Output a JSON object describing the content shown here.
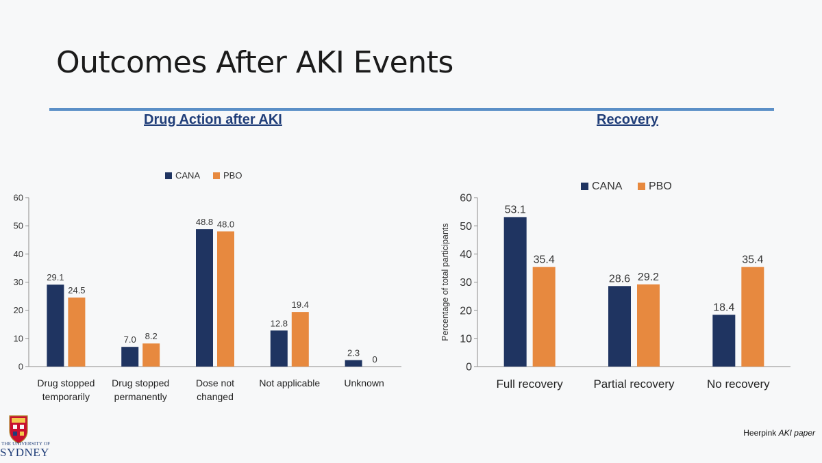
{
  "slide": {
    "title": "Outcomes After AKI Events",
    "citation_prefix": "Heerpink ",
    "citation_emph": "AKI paper",
    "logo_line1": "THE UNIVERSITY OF",
    "logo_line2": "SYDNEY"
  },
  "colors": {
    "cana": "#1f3461",
    "pbo": "#e7893f",
    "axis": "#8c8c8c",
    "text": "#333333"
  },
  "chart_data": [
    {
      "id": "drug-action",
      "type": "bar",
      "title": "Drug Action after AKI",
      "xlabel": "",
      "ylabel": "",
      "ylim": [
        0,
        60
      ],
      "yticks": [
        0,
        10,
        20,
        30,
        40,
        50,
        60
      ],
      "categories": [
        [
          "Drug stopped",
          "temporarily"
        ],
        [
          "Drug stopped",
          "permanently"
        ],
        [
          "Dose not",
          "changed"
        ],
        [
          "Not applicable"
        ],
        [
          "Unknown"
        ]
      ],
      "series": [
        {
          "name": "CANA",
          "values": [
            29.1,
            7.0,
            48.8,
            12.8,
            2.3
          ],
          "labels": [
            "29.1",
            "7.0",
            "48.8",
            "12.8",
            "2.3"
          ]
        },
        {
          "name": "PBO",
          "values": [
            24.5,
            8.2,
            48.0,
            19.4,
            0
          ],
          "labels": [
            "24.5",
            "8.2",
            "48.0",
            "19.4",
            "0"
          ]
        }
      ],
      "grid": false,
      "legend": "top-center"
    },
    {
      "id": "recovery",
      "type": "bar",
      "title": "Recovery",
      "xlabel": "",
      "ylabel": "Percentage of total participants",
      "ylim": [
        0,
        60
      ],
      "yticks": [
        0,
        10,
        20,
        30,
        40,
        50,
        60
      ],
      "categories": [
        [
          "Full recovery"
        ],
        [
          "Partial recovery"
        ],
        [
          "No recovery"
        ]
      ],
      "series": [
        {
          "name": "CANA",
          "values": [
            53.1,
            28.6,
            18.4
          ],
          "labels": [
            "53.1",
            "28.6",
            "18.4"
          ]
        },
        {
          "name": "PBO",
          "values": [
            35.4,
            29.2,
            35.4
          ],
          "labels": [
            "35.4",
            "29.2",
            "35.4"
          ]
        }
      ],
      "grid": false,
      "legend": "top-center"
    }
  ]
}
